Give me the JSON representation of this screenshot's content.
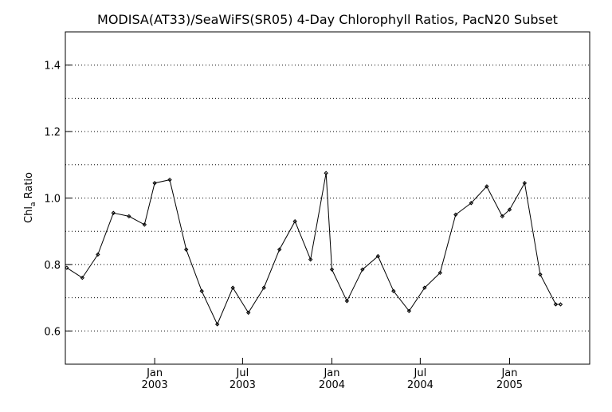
{
  "chart_data": {
    "type": "line",
    "title": "MODISA(AT33)/SeaWiFS(SR05) 4-Day Chlorophyll Ratios, PacN20 Subset",
    "ylabel": {
      "main": "Chl",
      "sub": "a",
      "rest": " Ratio"
    },
    "xlabel": "",
    "ylim": [
      0.5,
      1.5
    ],
    "yticks": [
      0.6,
      0.8,
      1.0,
      1.2,
      1.4
    ],
    "ytick_labels": [
      "0.6",
      "0.8",
      "1.0",
      "1.2",
      "1.4"
    ],
    "ygrid": [
      0.6,
      0.7,
      0.8,
      0.9,
      1.0,
      1.1,
      1.2,
      1.3,
      1.4
    ],
    "xlim": [
      "2002-07-01",
      "2005-06-15"
    ],
    "xticks": [
      {
        "date": "2003-01-01",
        "month": "Jan",
        "year": "2003"
      },
      {
        "date": "2003-07-01",
        "month": "Jul",
        "year": "2003"
      },
      {
        "date": "2004-01-01",
        "month": "Jan",
        "year": "2004"
      },
      {
        "date": "2004-07-01",
        "month": "Jul",
        "year": "2004"
      },
      {
        "date": "2005-01-01",
        "month": "Jan",
        "year": "2005"
      }
    ],
    "grid": "horizontal dotted",
    "series": [
      {
        "x": [
          "2002-07-04",
          "2002-08-05",
          "2002-09-06",
          "2002-10-08",
          "2002-11-09",
          "2002-12-11",
          "2003-01-01",
          "2003-02-01",
          "2003-03-07",
          "2003-04-08",
          "2003-05-10",
          "2003-06-11",
          "2003-07-13",
          "2003-08-14",
          "2003-09-15",
          "2003-10-17",
          "2003-11-18",
          "2003-12-20",
          "2004-01-01",
          "2004-02-01",
          "2004-03-04",
          "2004-04-05",
          "2004-05-07",
          "2004-06-08",
          "2004-07-10",
          "2004-08-11",
          "2004-09-12",
          "2004-10-14",
          "2004-11-15",
          "2004-12-17",
          "2005-01-01",
          "2005-02-01",
          "2005-03-05",
          "2005-04-06",
          "2005-04-16"
        ],
        "y": [
          0.79,
          0.76,
          0.83,
          0.955,
          0.945,
          0.92,
          1.045,
          1.055,
          0.845,
          0.72,
          0.62,
          0.73,
          0.655,
          0.73,
          0.845,
          0.93,
          0.815,
          1.075,
          0.785,
          0.69,
          0.785,
          0.825,
          0.72,
          0.66,
          0.73,
          0.775,
          0.95,
          0.985,
          1.035,
          0.945,
          0.965,
          1.045,
          0.77,
          0.68,
          0.68
        ]
      }
    ]
  }
}
